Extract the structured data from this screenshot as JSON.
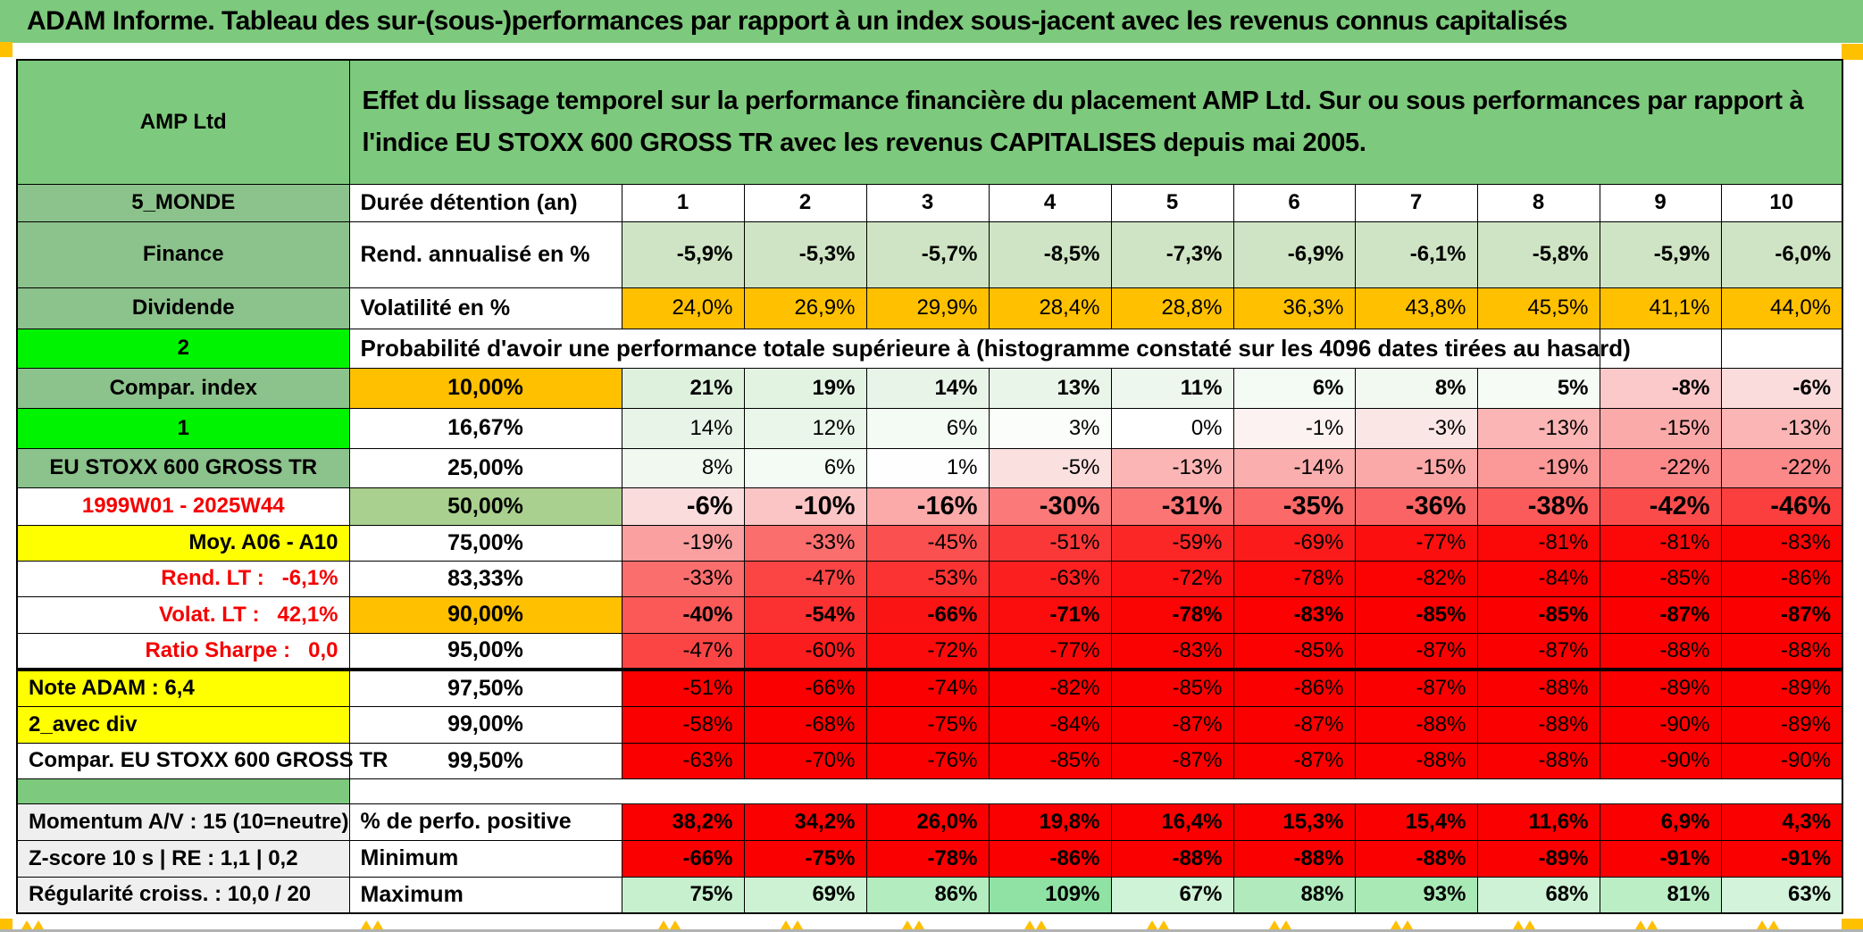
{
  "title": "ADAM Informe. Tableau des sur-(sous-)performances par rapport à un index sous-jacent avec les revenus connus capitalisés",
  "header": {
    "product": "AMP Ltd",
    "description": "Effet du lissage temporel sur la performance financière du placement AMP Ltd. Sur ou sous performances par rapport à l'indice EU STOXX 600 GROSS TR avec les revenus CAPITALISES depuis mai 2005."
  },
  "colors": {
    "title_green": "#7dc97d",
    "label_green": "#8cc28c",
    "bright_green": "#00f300",
    "orange": "#ffc000",
    "yellow": "#ffff00",
    "red_text": "#f50000",
    "full_red": "#fb0000",
    "rend_row_green": "#cfe4c4",
    "median_green": "#a9d08e",
    "gray_label": "#efefef"
  },
  "rows": [
    {
      "id": "duree",
      "a": "5_MONDE",
      "a_bg": "#8cc28c",
      "b": "Durée détention (an)",
      "b_align": "left",
      "values": [
        "1",
        "2",
        "3",
        "4",
        "5",
        "6",
        "7",
        "8",
        "9",
        "10"
      ],
      "cell_bg": "#ffffff",
      "v_bold": true,
      "v_align": "center"
    },
    {
      "id": "rend",
      "a": "Finance",
      "a_bg": "#8cc28c",
      "b": "Rend. annualisé en %",
      "b_align": "left",
      "values": [
        "-5,9%",
        "-5,3%",
        "-5,7%",
        "-8,5%",
        "-7,3%",
        "-6,9%",
        "-6,1%",
        "-5,8%",
        "-5,9%",
        "-6,0%"
      ],
      "cell_bg": "#cfe4c4",
      "v_bold": true
    },
    {
      "id": "volat",
      "a": "Dividende",
      "a_bg": "#8cc28c",
      "b": "Volatilité en %",
      "b_align": "left",
      "values": [
        "24,0%",
        "26,9%",
        "29,9%",
        "28,4%",
        "28,8%",
        "36,3%",
        "43,8%",
        "45,5%",
        "41,1%",
        "44,0%"
      ],
      "cell_bg": "#ffc000"
    },
    {
      "id": "prob",
      "a": "2",
      "a_bg": "#00f300",
      "a_corner": true,
      "merged": "Probabilité d'avoir une performance totale supérieure à (histogramme constaté sur les 4096 dates tirées au hasard)",
      "empty_tail": 2
    },
    {
      "id": "p10",
      "a": "Compar. index",
      "a_bg": "#8cc28c",
      "b": "10,00%",
      "b_bg": "#ffc000",
      "values": [
        "21%",
        "19%",
        "14%",
        "13%",
        "11%",
        "6%",
        "8%",
        "5%",
        "-8%",
        "-6%"
      ],
      "cell_bg": [
        "#ddf1dd",
        "#e2f3e2",
        "#e7f4e7",
        "#eaf5ea",
        "#eef7ee",
        "#f4faf4",
        "#f1f9f1",
        "#f6fbf6",
        "#fbc9c9",
        "#fbdcdc"
      ],
      "v_bold": true
    },
    {
      "id": "p16",
      "a": "1",
      "a_bg": "#00f300",
      "a_corner": true,
      "b": "16,67%",
      "values": [
        "14%",
        "12%",
        "6%",
        "3%",
        "0%",
        "-1%",
        "-3%",
        "-13%",
        "-15%",
        "-13%"
      ],
      "cell_bg": [
        "#e7f4e7",
        "#eaf6ea",
        "#f4faf4",
        "#fafdfa",
        "#ffffff",
        "#fdf2f2",
        "#fbe6e6",
        "#fbb5b5",
        "#fbaaaa",
        "#fbb5b5"
      ]
    },
    {
      "id": "p25",
      "a": "EU STOXX 600 GROSS TR",
      "a_bg": "#8cc28c",
      "a_small": true,
      "b": "25,00%",
      "values": [
        "8%",
        "6%",
        "1%",
        "-5%",
        "-13%",
        "-14%",
        "-15%",
        "-19%",
        "-22%",
        "-22%"
      ],
      "cell_bg": [
        "#f0f8f0",
        "#f4faf4",
        "#fdfefd",
        "#fbe0e0",
        "#fbb5b5",
        "#fbaeae",
        "#fba8a8",
        "#fb9898",
        "#fb8989",
        "#fb8989"
      ]
    },
    {
      "id": "p50",
      "a": "1999W01 - 2025W44",
      "a_color": "#f50000",
      "b": "50,00%",
      "b_bg": "#a9d08e",
      "b_big": true,
      "values": [
        "-6%",
        "-10%",
        "-16%",
        "-30%",
        "-31%",
        "-35%",
        "-36%",
        "-38%",
        "-42%",
        "-46%"
      ],
      "cell_bg": [
        "#fbdcdc",
        "#fbc5c5",
        "#fba9a9",
        "#fb7979",
        "#fb7575",
        "#fb6969",
        "#fb6464",
        "#fb5b5b",
        "#fb4c4c",
        "#fb3e3e"
      ],
      "v_bold": true,
      "v_big": true
    },
    {
      "id": "p75",
      "a": "Moy. A06 - A10",
      "a_bg": "#ffff00",
      "a_align": "right",
      "b": "75,00%",
      "values": [
        "-19%",
        "-33%",
        "-45%",
        "-51%",
        "-59%",
        "-69%",
        "-77%",
        "-81%",
        "-81%",
        "-83%"
      ],
      "cell_bg": [
        "#fba0a0",
        "#fb6e6e",
        "#fb5050",
        "#fb3838",
        "#fb2727",
        "#fb1b1b",
        "#fb0f0f",
        "#fb0808",
        "#fb0808",
        "#fb0404"
      ]
    },
    {
      "id": "p83",
      "a": "Rend. LT :   -6,1%",
      "a_color": "#f50000",
      "a_align": "right",
      "b": "83,33%",
      "values": [
        "-33%",
        "-47%",
        "-53%",
        "-63%",
        "-72%",
        "-78%",
        "-82%",
        "-84%",
        "-85%",
        "-86%"
      ],
      "cell_bg": [
        "#fb6e6e",
        "#fb4545",
        "#fb3333",
        "#fb1f1f",
        "#fb1111",
        "#fb0707",
        "#fb0303",
        "#fb0101",
        "#fb0101",
        "#fb0000"
      ]
    },
    {
      "id": "p90",
      "a": "Volat. LT :   42,1%",
      "a_color": "#f50000",
      "a_align": "right",
      "b": "90,00%",
      "b_bg": "#ffc000",
      "values": [
        "-40%",
        "-54%",
        "-66%",
        "-71%",
        "-78%",
        "-83%",
        "-85%",
        "-85%",
        "-87%",
        "-87%"
      ],
      "cell_bg": [
        "#fb5858",
        "#fb3030",
        "#fb1414",
        "#fb0d0d",
        "#fb0404",
        "#fb0101",
        "#fb0000",
        "#fb0000",
        "#fb0000",
        "#fb0000"
      ],
      "v_bold": true
    },
    {
      "id": "p95",
      "a": "Ratio Sharpe :   0,0",
      "a_color": "#f50000",
      "a_align": "right",
      "b": "95,00%",
      "values": [
        "-47%",
        "-60%",
        "-72%",
        "-77%",
        "-83%",
        "-85%",
        "-87%",
        "-87%",
        "-88%",
        "-88%"
      ],
      "cell_bg": [
        "#fb4545",
        "#fb1d1d",
        "#fb0b0b",
        "#fb0707",
        "#fb0202",
        "#fb0101",
        "#fb0000",
        "#fb0000",
        "#fb0000",
        "#fb0000"
      ],
      "thick_bottom": true
    },
    {
      "id": "p975",
      "a": "Note ADAM : 6,4",
      "a_bg": "#ffff00",
      "a_align": "left",
      "b": "97,50%",
      "values": [
        "-51%",
        "-66%",
        "-74%",
        "-82%",
        "-85%",
        "-86%",
        "-87%",
        "-88%",
        "-89%",
        "-89%"
      ],
      "cell_bg": "#fb0000"
    },
    {
      "id": "p99",
      "a": "2_avec div",
      "a_bg": "#ffff00",
      "a_align": "left",
      "b": "99,00%",
      "values": [
        "-58%",
        "-68%",
        "-75%",
        "-84%",
        "-87%",
        "-87%",
        "-88%",
        "-88%",
        "-90%",
        "-89%"
      ],
      "cell_bg": "#fb0000"
    },
    {
      "id": "p995",
      "a": "Compar. EU STOXX 600 GROSS TR",
      "a_small": true,
      "b": "99,50%",
      "values": [
        "-63%",
        "-70%",
        "-76%",
        "-85%",
        "-87%",
        "-87%",
        "-88%",
        "-88%",
        "-90%",
        "-90%"
      ],
      "cell_bg": "#fb0000"
    },
    {
      "id": "sep",
      "separator": true,
      "a": "",
      "a_bg": "#7dc97d"
    },
    {
      "id": "perfo",
      "a": "Momentum A/V : 15 (10=neutre)",
      "a_bg": "#efefef",
      "a_align": "left",
      "b": "% de perfo. positive",
      "b_align": "left",
      "values": [
        "38,2%",
        "34,2%",
        "26,0%",
        "19,8%",
        "16,4%",
        "15,3%",
        "15,4%",
        "11,6%",
        "6,9%",
        "4,3%"
      ],
      "cell_bg": "#fb0000",
      "v_bold": true
    },
    {
      "id": "min",
      "a": "Z-score 10 s | RE : 1,1 | 0,2",
      "a_bg": "#efefef",
      "a_align": "left",
      "b": "Minimum",
      "b_align": "left",
      "values": [
        "-66%",
        "-75%",
        "-78%",
        "-86%",
        "-88%",
        "-88%",
        "-88%",
        "-89%",
        "-91%",
        "-91%"
      ],
      "cell_bg": "#fb0000",
      "v_bold": true
    },
    {
      "id": "max",
      "a": "Régularité croiss. : 10,0 / 20",
      "a_bg": "#efefef",
      "a_align": "left",
      "b": "Maximum",
      "b_align": "left",
      "values": [
        "75%",
        "69%",
        "86%",
        "109%",
        "67%",
        "88%",
        "93%",
        "68%",
        "81%",
        "63%"
      ],
      "cell_bg": [
        "#c6f0ce",
        "#ccf2d3",
        "#b3ecbf",
        "#8fe2a4",
        "#cff3d6",
        "#b1ebbd",
        "#a9e9b6",
        "#cef2d5",
        "#bceec6",
        "#d3f4da"
      ],
      "v_bold": true
    }
  ]
}
